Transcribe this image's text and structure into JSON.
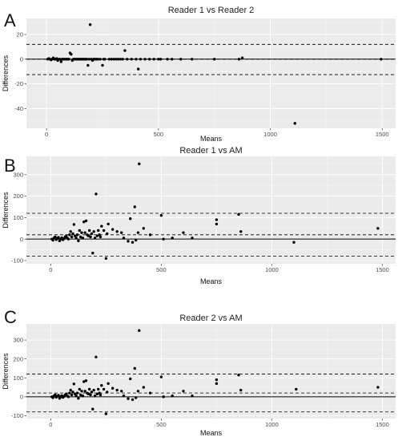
{
  "chart_data": [
    {
      "type": "scatter",
      "panel_label": "A",
      "title": "Reader 1 vs Reader 2",
      "xlabel": "Means",
      "ylabel": "Differences",
      "xlim": [
        -90,
        1560
      ],
      "ylim": [
        -56,
        33
      ],
      "x_ticks": [
        0,
        500,
        1000,
        1500
      ],
      "y_ticks": [
        -40,
        -20,
        0,
        20
      ],
      "x_tick_labels": [
        "0",
        "500",
        "1000",
        "1500"
      ],
      "y_tick_labels": [
        "-40",
        "-20",
        "0",
        "20"
      ],
      "grid": true,
      "legend": "none",
      "hlines": {
        "mean": 0,
        "upper_loa": 12,
        "lower_loa": -12.5
      },
      "points": [
        [
          5,
          0
        ],
        [
          10,
          0.5
        ],
        [
          15,
          0
        ],
        [
          20,
          -0.5
        ],
        [
          25,
          0
        ],
        [
          30,
          1
        ],
        [
          35,
          0
        ],
        [
          40,
          0
        ],
        [
          45,
          0.5
        ],
        [
          50,
          -1
        ],
        [
          55,
          0
        ],
        [
          60,
          0
        ],
        [
          65,
          -2
        ],
        [
          70,
          0
        ],
        [
          75,
          0
        ],
        [
          80,
          0
        ],
        [
          85,
          0
        ],
        [
          90,
          0
        ],
        [
          95,
          0
        ],
        [
          100,
          0
        ],
        [
          105,
          5
        ],
        [
          110,
          4
        ],
        [
          115,
          -1
        ],
        [
          120,
          0
        ],
        [
          125,
          0
        ],
        [
          130,
          0
        ],
        [
          135,
          0
        ],
        [
          140,
          0
        ],
        [
          145,
          0
        ],
        [
          150,
          0
        ],
        [
          155,
          0
        ],
        [
          160,
          0
        ],
        [
          165,
          0
        ],
        [
          170,
          0
        ],
        [
          175,
          0
        ],
        [
          180,
          0
        ],
        [
          185,
          -5
        ],
        [
          190,
          0
        ],
        [
          195,
          28
        ],
        [
          200,
          0
        ],
        [
          205,
          -1
        ],
        [
          210,
          0
        ],
        [
          215,
          0
        ],
        [
          220,
          0
        ],
        [
          225,
          0
        ],
        [
          230,
          0
        ],
        [
          240,
          0
        ],
        [
          250,
          -5
        ],
        [
          255,
          0
        ],
        [
          260,
          0
        ],
        [
          280,
          0
        ],
        [
          290,
          0
        ],
        [
          300,
          0
        ],
        [
          310,
          0
        ],
        [
          320,
          0
        ],
        [
          330,
          0
        ],
        [
          340,
          0
        ],
        [
          350,
          7
        ],
        [
          360,
          0
        ],
        [
          380,
          0
        ],
        [
          400,
          0
        ],
        [
          410,
          -8
        ],
        [
          420,
          0
        ],
        [
          440,
          0
        ],
        [
          460,
          0
        ],
        [
          480,
          0
        ],
        [
          500,
          0
        ],
        [
          510,
          0
        ],
        [
          540,
          0
        ],
        [
          560,
          0
        ],
        [
          600,
          0
        ],
        [
          650,
          0
        ],
        [
          750,
          0
        ],
        [
          860,
          0
        ],
        [
          875,
          1
        ],
        [
          1110,
          -52
        ],
        [
          1495,
          0
        ]
      ]
    },
    {
      "type": "scatter",
      "panel_label": "B",
      "title": "Reader 1 vs AM",
      "xlabel": "Means",
      "ylabel": "Differences",
      "xlim": [
        -110,
        1560
      ],
      "ylim": [
        -115,
        385
      ],
      "x_ticks": [
        0,
        500,
        1000,
        1500
      ],
      "y_ticks": [
        -100,
        0,
        100,
        200,
        300
      ],
      "x_tick_labels": [
        "0",
        "500",
        "1000",
        "1500"
      ],
      "y_tick_labels": [
        "-100",
        "0",
        "100",
        "200",
        "300"
      ],
      "grid": true,
      "legend": "none",
      "hlines": {
        "mean": 20,
        "upper_loa": 120,
        "lower_loa": -80
      },
      "points": [
        [
          5,
          0
        ],
        [
          10,
          -5
        ],
        [
          15,
          5
        ],
        [
          20,
          10
        ],
        [
          25,
          -2
        ],
        [
          30,
          3
        ],
        [
          35,
          8
        ],
        [
          40,
          -8
        ],
        [
          45,
          0
        ],
        [
          50,
          6
        ],
        [
          55,
          -3
        ],
        [
          60,
          2
        ],
        [
          65,
          10
        ],
        [
          70,
          15
        ],
        [
          75,
          5
        ],
        [
          80,
          0
        ],
        [
          85,
          20
        ],
        [
          90,
          35
        ],
        [
          95,
          10
        ],
        [
          100,
          25
        ],
        [
          105,
          68
        ],
        [
          110,
          15
        ],
        [
          115,
          5
        ],
        [
          120,
          20
        ],
        [
          125,
          -8
        ],
        [
          130,
          40
        ],
        [
          135,
          10
        ],
        [
          140,
          30
        ],
        [
          145,
          5
        ],
        [
          150,
          80
        ],
        [
          155,
          30
        ],
        [
          160,
          85
        ],
        [
          165,
          20
        ],
        [
          170,
          15
        ],
        [
          175,
          40
        ],
        [
          180,
          10
        ],
        [
          185,
          25
        ],
        [
          190,
          -65
        ],
        [
          195,
          35
        ],
        [
          200,
          5
        ],
        [
          205,
          210
        ],
        [
          210,
          15
        ],
        [
          215,
          40
        ],
        [
          220,
          20
        ],
        [
          225,
          10
        ],
        [
          230,
          60
        ],
        [
          240,
          40
        ],
        [
          250,
          -90
        ],
        [
          255,
          25
        ],
        [
          260,
          70
        ],
        [
          280,
          45
        ],
        [
          300,
          35
        ],
        [
          320,
          30
        ],
        [
          330,
          5
        ],
        [
          350,
          -10
        ],
        [
          360,
          95
        ],
        [
          370,
          -15
        ],
        [
          380,
          150
        ],
        [
          385,
          -5
        ],
        [
          395,
          30
        ],
        [
          400,
          350
        ],
        [
          420,
          50
        ],
        [
          450,
          20
        ],
        [
          500,
          110
        ],
        [
          510,
          0
        ],
        [
          550,
          5
        ],
        [
          600,
          30
        ],
        [
          640,
          5
        ],
        [
          750,
          90
        ],
        [
          750,
          70
        ],
        [
          850,
          115
        ],
        [
          860,
          35
        ],
        [
          1100,
          -15
        ],
        [
          1480,
          50
        ]
      ]
    },
    {
      "type": "scatter",
      "panel_label": "C",
      "title": "Reader 2 vs AM",
      "xlabel": "Means",
      "ylabel": "Differences",
      "xlim": [
        -110,
        1560
      ],
      "ylim": [
        -115,
        385
      ],
      "x_ticks": [
        0,
        500,
        1000,
        1500
      ],
      "y_ticks": [
        -100,
        0,
        100,
        200,
        300
      ],
      "x_tick_labels": [
        "0",
        "500",
        "1000",
        "1500"
      ],
      "y_tick_labels": [
        "-100",
        "0",
        "100",
        "200",
        "300"
      ],
      "grid": true,
      "legend": "none",
      "hlines": {
        "mean": 20,
        "upper_loa": 120,
        "lower_loa": -80
      },
      "points": [
        [
          5,
          0
        ],
        [
          10,
          -5
        ],
        [
          15,
          5
        ],
        [
          20,
          10
        ],
        [
          25,
          -2
        ],
        [
          30,
          3
        ],
        [
          35,
          8
        ],
        [
          40,
          -8
        ],
        [
          45,
          0
        ],
        [
          50,
          6
        ],
        [
          55,
          -3
        ],
        [
          60,
          2
        ],
        [
          65,
          10
        ],
        [
          70,
          15
        ],
        [
          75,
          5
        ],
        [
          80,
          0
        ],
        [
          85,
          20
        ],
        [
          90,
          35
        ],
        [
          95,
          10
        ],
        [
          100,
          25
        ],
        [
          105,
          68
        ],
        [
          110,
          15
        ],
        [
          115,
          5
        ],
        [
          120,
          20
        ],
        [
          125,
          -8
        ],
        [
          130,
          40
        ],
        [
          135,
          10
        ],
        [
          140,
          30
        ],
        [
          145,
          5
        ],
        [
          150,
          80
        ],
        [
          155,
          30
        ],
        [
          160,
          85
        ],
        [
          165,
          20
        ],
        [
          170,
          15
        ],
        [
          175,
          40
        ],
        [
          180,
          10
        ],
        [
          185,
          25
        ],
        [
          190,
          -65
        ],
        [
          195,
          35
        ],
        [
          200,
          5
        ],
        [
          205,
          210
        ],
        [
          210,
          15
        ],
        [
          215,
          40
        ],
        [
          220,
          20
        ],
        [
          225,
          10
        ],
        [
          230,
          60
        ],
        [
          240,
          40
        ],
        [
          250,
          -90
        ],
        [
          255,
          25
        ],
        [
          260,
          70
        ],
        [
          280,
          45
        ],
        [
          300,
          35
        ],
        [
          320,
          30
        ],
        [
          330,
          5
        ],
        [
          350,
          -10
        ],
        [
          360,
          95
        ],
        [
          370,
          -15
        ],
        [
          380,
          150
        ],
        [
          385,
          -5
        ],
        [
          395,
          30
        ],
        [
          400,
          350
        ],
        [
          420,
          50
        ],
        [
          450,
          20
        ],
        [
          500,
          105
        ],
        [
          510,
          0
        ],
        [
          550,
          5
        ],
        [
          600,
          30
        ],
        [
          640,
          5
        ],
        [
          750,
          90
        ],
        [
          750,
          70
        ],
        [
          850,
          115
        ],
        [
          860,
          35
        ],
        [
          1110,
          40
        ],
        [
          1480,
          50
        ]
      ]
    }
  ]
}
